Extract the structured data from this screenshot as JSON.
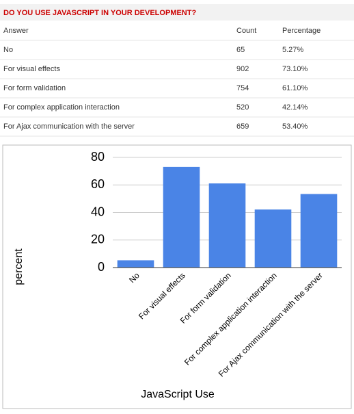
{
  "header": {
    "title": "DO YOU USE JAVASCRIPT IN YOUR DEVELOPMENT?"
  },
  "table": {
    "columns": [
      "Answer",
      "Count",
      "Percentage"
    ],
    "rows": [
      [
        "No",
        "65",
        "5.27%"
      ],
      [
        "For visual effects",
        "902",
        "73.10%"
      ],
      [
        "For form validation",
        "754",
        "61.10%"
      ],
      [
        "For complex application interaction",
        "520",
        "42.14%"
      ],
      [
        "For Ajax communication with the server",
        "659",
        "53.40%"
      ]
    ]
  },
  "chart_data": {
    "type": "bar",
    "x_label": "JavaScript Use",
    "y_label": "percent",
    "categories": [
      "No",
      "For visual effects",
      "For form validation",
      "For complex application interaction",
      "For Ajax communication with the server"
    ],
    "values": [
      5.27,
      73.1,
      61.1,
      42.14,
      53.4
    ],
    "color": "#4a84e6",
    "ylim": [
      0,
      80
    ],
    "yticks": [
      0,
      20,
      40,
      60,
      80
    ],
    "grid": true
  }
}
